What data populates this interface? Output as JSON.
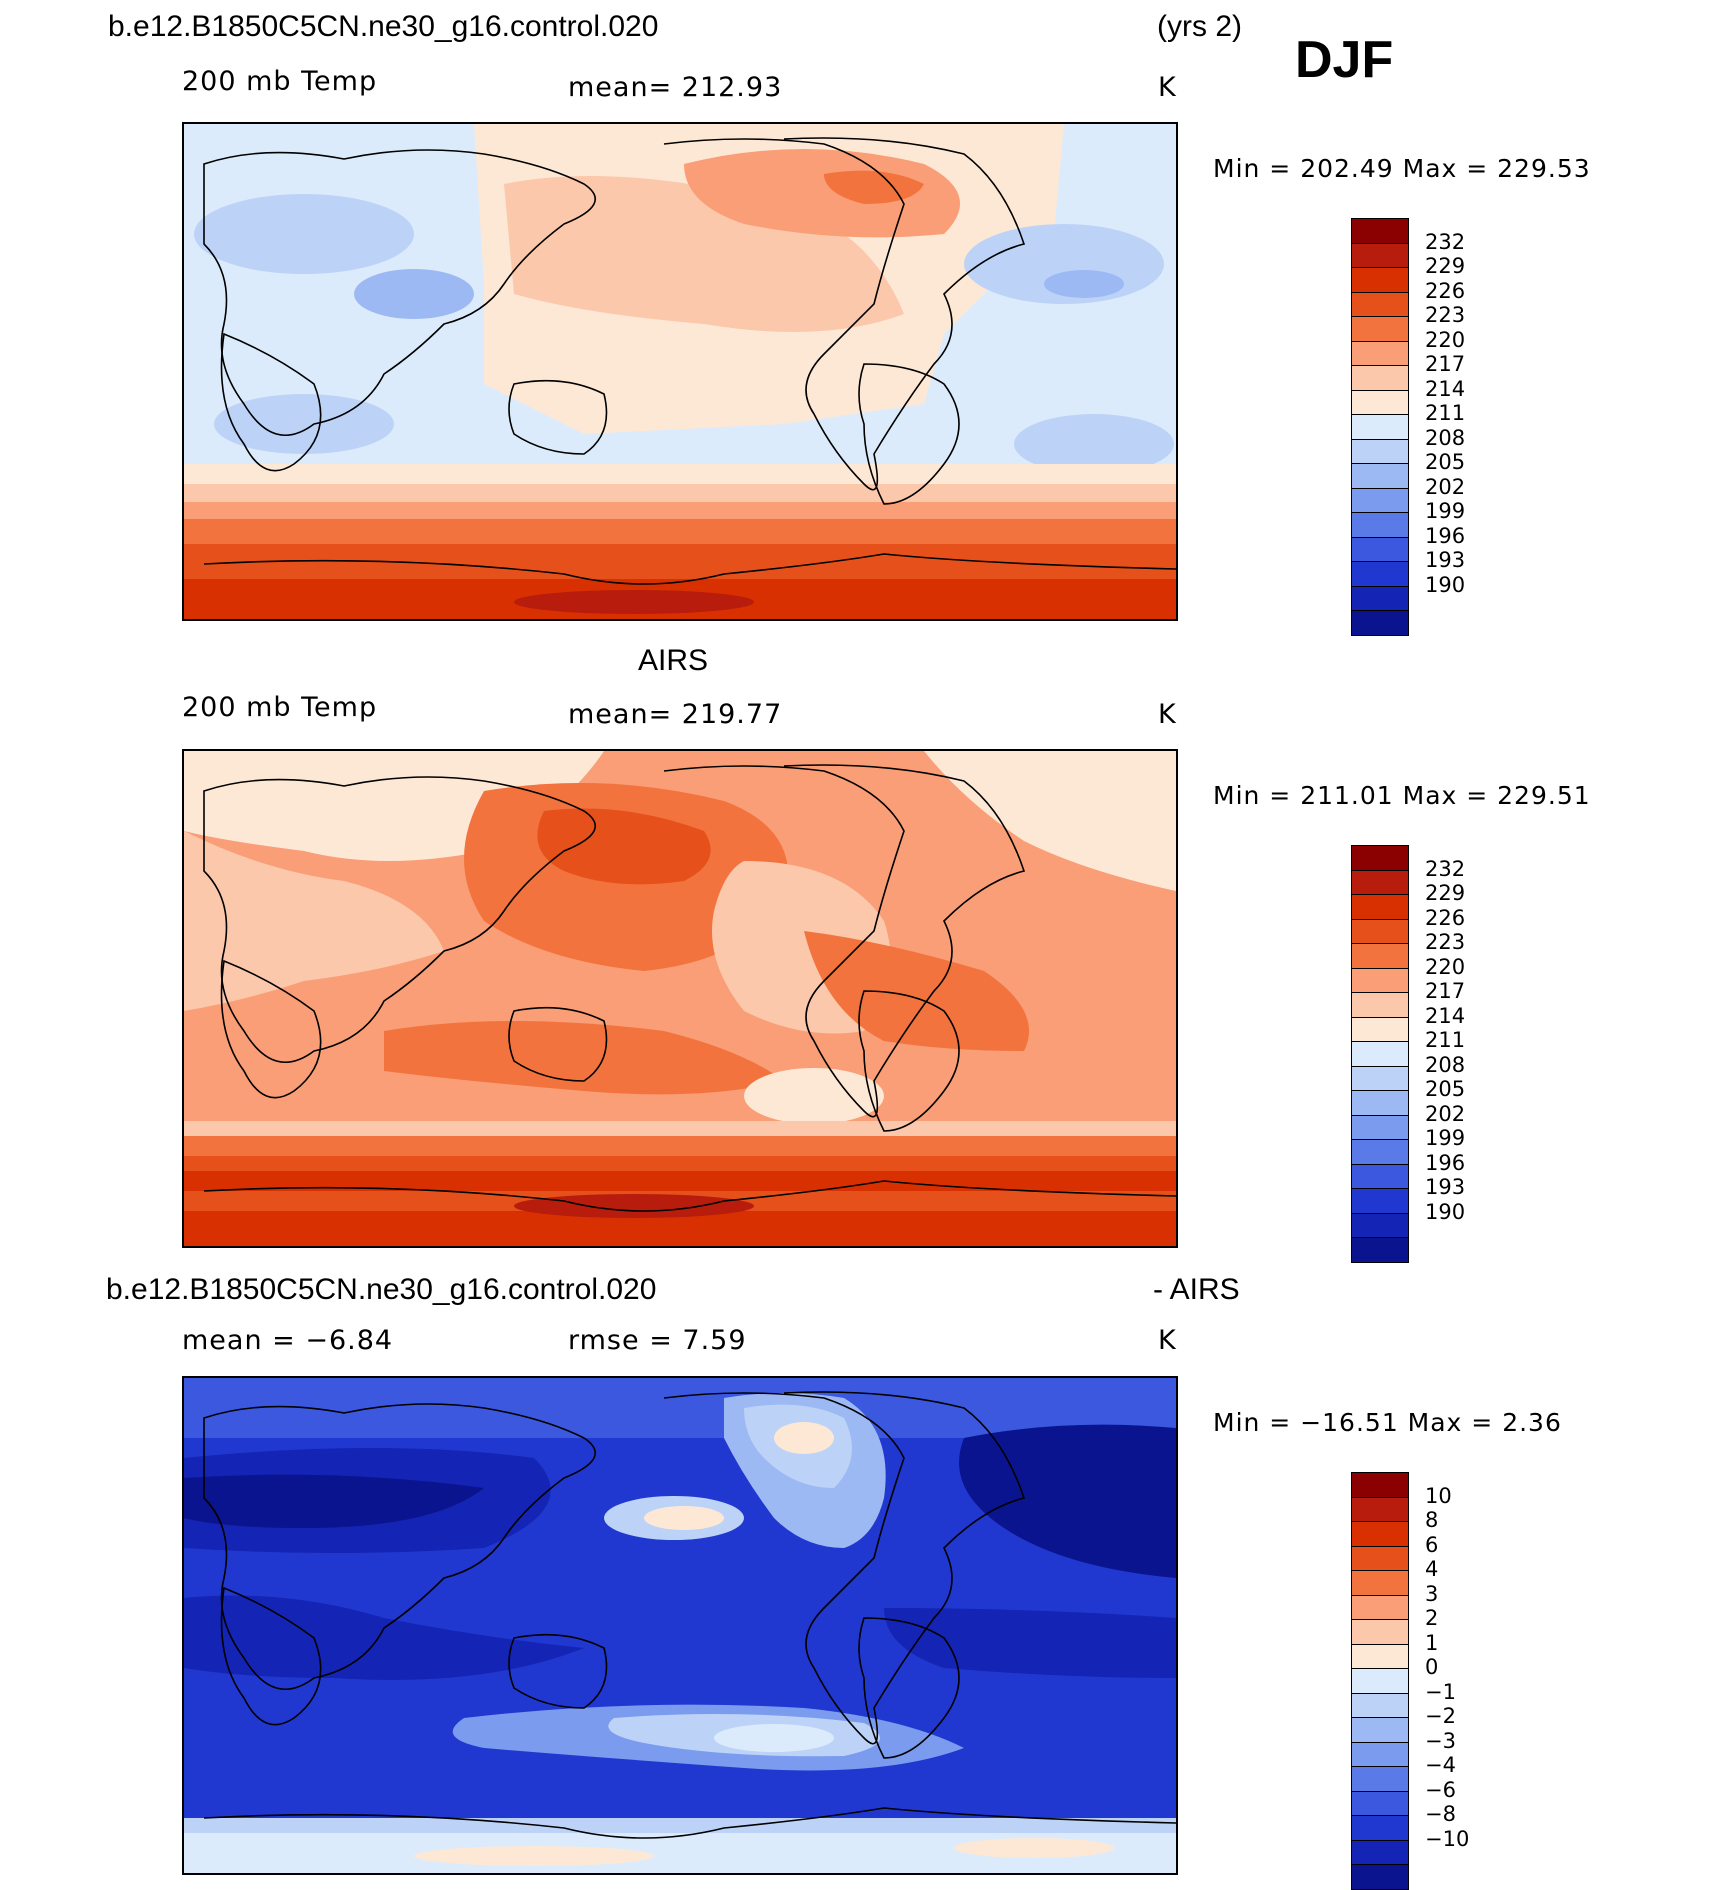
{
  "header": {
    "case_name": "b.e12.B1850C5CN.ne30_g16.control.020",
    "years": "(yrs 2)",
    "season": "DJF"
  },
  "panels": [
    {
      "title": "",
      "variable": "200 mb Temp",
      "stat": "mean=  212.93",
      "units": "K",
      "minmax": "Min  =  202.49  Max  =  229.53",
      "colorbar_labels": [
        "232",
        "229",
        "226",
        "223",
        "220",
        "217",
        "214",
        "211",
        "208",
        "205",
        "202",
        "199",
        "196",
        "193",
        "190"
      ],
      "colors": [
        "#8b0000",
        "#b71c0c",
        "#d83000",
        "#e6501a",
        "#f2733d",
        "#f99e76",
        "#fcc8ab",
        "#fde8d6",
        "#dcebfb",
        "#bcd3f7",
        "#9db9f3",
        "#7b9bee",
        "#5a7ae8",
        "#3b58df",
        "#2038d0",
        "#1424b4",
        "#0a148e"
      ]
    },
    {
      "title": "AIRS",
      "variable": "200 mb Temp",
      "stat": "mean=  219.77",
      "units": "K",
      "minmax": "Min  =  211.01  Max  =  229.51",
      "colorbar_labels": [
        "232",
        "229",
        "226",
        "223",
        "220",
        "217",
        "214",
        "211",
        "208",
        "205",
        "202",
        "199",
        "196",
        "193",
        "190"
      ],
      "colors": [
        "#8b0000",
        "#b71c0c",
        "#d83000",
        "#e6501a",
        "#f2733d",
        "#f99e76",
        "#fcc8ab",
        "#fde8d6",
        "#dcebfb",
        "#bcd3f7",
        "#9db9f3",
        "#7b9bee",
        "#5a7ae8",
        "#3b58df",
        "#2038d0",
        "#1424b4",
        "#0a148e"
      ]
    },
    {
      "title_left": "b.e12.B1850C5CN.ne30_g16.control.020",
      "title_right": "- AIRS",
      "stat_left": "mean  =   −6.84",
      "stat_mid": "rmse  =     7.59",
      "units": "K",
      "minmax": "Min  =  −16.51  Max  =      2.36",
      "colorbar_labels": [
        "10",
        "8",
        "6",
        "4",
        "3",
        "2",
        "1",
        "0",
        "−1",
        "−2",
        "−3",
        "−4",
        "−6",
        "−8",
        "−10"
      ],
      "colors": [
        "#8b0000",
        "#b71c0c",
        "#d83000",
        "#e6501a",
        "#f2733d",
        "#f99e76",
        "#fcc8ab",
        "#fde8d6",
        "#dcebfb",
        "#bcd3f7",
        "#9db9f3",
        "#7b9bee",
        "#5a7ae8",
        "#3b58df",
        "#2038d0",
        "#1424b4",
        "#0a148e"
      ]
    }
  ]
}
